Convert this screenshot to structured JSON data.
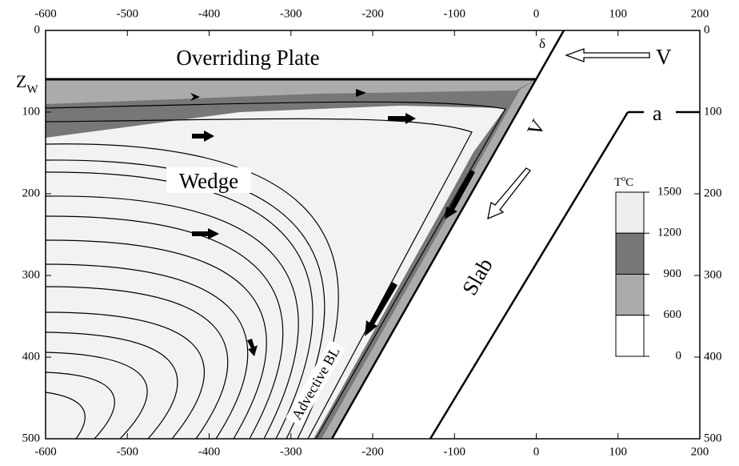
{
  "axes": {
    "x_ticks": [
      -600,
      -500,
      -400,
      -300,
      -200,
      -100,
      0,
      100,
      200
    ],
    "y_ticks": [
      0,
      100,
      200,
      300,
      400,
      500
    ]
  },
  "labels": {
    "overriding_plate": "Overriding Plate",
    "zw": "Z",
    "zw_sub": "W",
    "delta": "δ",
    "v_top": "V",
    "v_slab": "V",
    "a": "a",
    "wedge": "Wedge",
    "slab": "Slab",
    "advective": "Advective BL"
  },
  "colorbar": {
    "title": "T",
    "title_sup": "o",
    "title_unit": "C",
    "ticks": [
      1500,
      1200,
      900,
      600,
      0
    ]
  }
}
